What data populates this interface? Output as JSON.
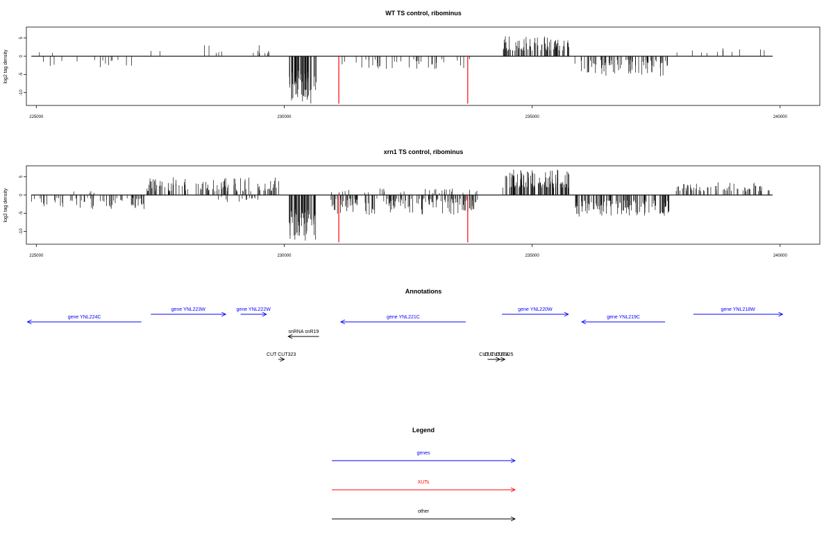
{
  "chart_data": [
    {
      "type": "bar",
      "title": "WT TS control, ribominus",
      "ylabel": "log2 tag density",
      "xlim": [
        224800,
        240800
      ],
      "ylim": [
        -13.5,
        8
      ],
      "x_ticks": [
        "225000",
        "230000",
        "235000",
        "240000"
      ],
      "y_ticks": [
        "-10",
        "-5",
        "0",
        "5"
      ],
      "regions": [
        {
          "start": 224900,
          "end": 227100,
          "density": 0.35,
          "sign": -1,
          "ymin": 0.8,
          "ymax": 3.0
        },
        {
          "start": 225000,
          "end": 225400,
          "density": 0.3,
          "sign": 1,
          "ymin": 0.8,
          "ymax": 2.5
        },
        {
          "start": 227200,
          "end": 227500,
          "density": 0.4,
          "sign": 1,
          "ymin": 1.0,
          "ymax": 2.2
        },
        {
          "start": 228000,
          "end": 228900,
          "density": 0.25,
          "sign": 1,
          "ymin": 0.8,
          "ymax": 3.5
        },
        {
          "start": 229200,
          "end": 229900,
          "density": 0.6,
          "sign": 1,
          "ymin": 0.8,
          "ymax": 3.2
        },
        {
          "start": 230100,
          "end": 230650,
          "density": 5.0,
          "sign": -1,
          "ymin": 4.0,
          "ymax": 13.0
        },
        {
          "start": 231100,
          "end": 233800,
          "density": 0.7,
          "sign": -1,
          "ymin": 0.8,
          "ymax": 3.5
        },
        {
          "start": 234400,
          "end": 235750,
          "density": 3.0,
          "sign": 1,
          "ymin": 1.5,
          "ymax": 5.5
        },
        {
          "start": 235850,
          "end": 237800,
          "density": 2.0,
          "sign": -1,
          "ymin": 1.0,
          "ymax": 5.5
        },
        {
          "start": 237900,
          "end": 239800,
          "density": 0.3,
          "sign": 1,
          "ymin": 0.8,
          "ymax": 2.2
        }
      ],
      "highlights": [
        {
          "x": 231100,
          "value": -13,
          "color": "#ff0000"
        },
        {
          "x": 233700,
          "value": -13,
          "color": "#ff0000"
        }
      ]
    },
    {
      "type": "bar",
      "title": "xrn1 TS control, ribominus",
      "ylabel": "log2 tag density",
      "xlim": [
        224800,
        240800
      ],
      "ylim": [
        -13.5,
        8
      ],
      "x_ticks": [
        "225000",
        "230000",
        "235000",
        "240000"
      ],
      "y_ticks": [
        "-10",
        "-5",
        "0",
        "5"
      ],
      "regions": [
        {
          "start": 224900,
          "end": 227200,
          "density": 1.4,
          "sign": -1,
          "ymin": 0.8,
          "ymax": 4.0
        },
        {
          "start": 225400,
          "end": 226800,
          "density": 0.15,
          "sign": 1,
          "ymin": 0.5,
          "ymax": 1.5
        },
        {
          "start": 227200,
          "end": 229900,
          "density": 2.0,
          "sign": 1,
          "ymin": 1.0,
          "ymax": 5.0
        },
        {
          "start": 228600,
          "end": 229800,
          "density": 0.6,
          "sign": -1,
          "ymin": 0.5,
          "ymax": 2.0
        },
        {
          "start": 230100,
          "end": 230650,
          "density": 5.0,
          "sign": -1,
          "ymin": 4.0,
          "ymax": 13.0
        },
        {
          "start": 230900,
          "end": 233900,
          "density": 2.5,
          "sign": -1,
          "ymin": 1.0,
          "ymax": 5.5
        },
        {
          "start": 230900,
          "end": 233900,
          "density": 0.5,
          "sign": 1,
          "ymin": 0.5,
          "ymax": 2.0
        },
        {
          "start": 234400,
          "end": 235750,
          "density": 4.0,
          "sign": 1,
          "ymin": 2.0,
          "ymax": 7.0
        },
        {
          "start": 235850,
          "end": 237800,
          "density": 3.0,
          "sign": -1,
          "ymin": 1.5,
          "ymax": 6.0
        },
        {
          "start": 237900,
          "end": 239800,
          "density": 1.8,
          "sign": 1,
          "ymin": 1.0,
          "ymax": 3.5
        }
      ],
      "highlights": [
        {
          "x": 231100,
          "value": -13,
          "color": "#ff0000"
        },
        {
          "x": 233700,
          "value": -13,
          "color": "#ff0000"
        }
      ]
    }
  ],
  "annotations": {
    "title": "Annotations",
    "genes": [
      {
        "label": "gene YNL224C",
        "start": 224820,
        "end": 227120,
        "row": 2,
        "strand": "-"
      },
      {
        "label": "gene YNL223W",
        "start": 227310,
        "end": 228820,
        "row": 1,
        "strand": "+"
      },
      {
        "label": "gene YNL222W",
        "start": 229120,
        "end": 229640,
        "row": 1,
        "strand": "+"
      },
      {
        "label": "gene YNL221C",
        "start": 231140,
        "end": 233660,
        "row": 2,
        "strand": "-"
      },
      {
        "label": "gene YNL220W",
        "start": 234390,
        "end": 235730,
        "row": 1,
        "strand": "+"
      },
      {
        "label": "gene YNL219C",
        "start": 236000,
        "end": 237680,
        "row": 2,
        "strand": "-"
      },
      {
        "label": "gene YNL218W",
        "start": 238250,
        "end": 240050,
        "row": 1,
        "strand": "+"
      }
    ],
    "other": [
      {
        "label": "snRNA snR19",
        "start": 230080,
        "end": 230700,
        "row": 3,
        "strand": "-"
      },
      {
        "label": "CUT CUT323",
        "start": 229880,
        "end": 230000,
        "row": 4,
        "strand": "+"
      },
      {
        "label": "CUT CUT324",
        "start": 234100,
        "end": 234350,
        "row": 4,
        "strand": "+"
      },
      {
        "label": "CUT CUT325",
        "start": 234200,
        "end": 234450,
        "row": 4,
        "strand": "+"
      }
    ]
  },
  "legend": {
    "title": "Legend",
    "items": [
      {
        "label": "genes",
        "color": "#0000ff"
      },
      {
        "label": "XUTs",
        "color": "#ff0000"
      },
      {
        "label": "other",
        "color": "#000000"
      }
    ]
  }
}
